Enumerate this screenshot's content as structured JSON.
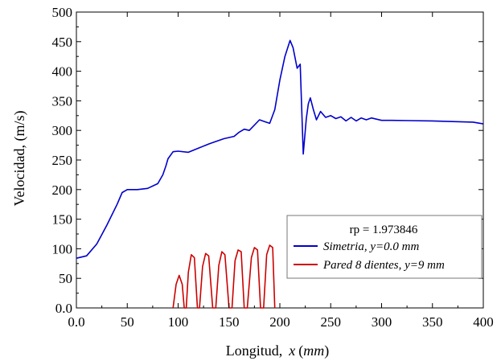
{
  "chart_data": {
    "type": "line",
    "xlabel": "Longitud,",
    "xlabel_var": "x",
    "xlabel_unit": "mm",
    "ylabel": "Velocidad, (m/s)",
    "xlim": [
      0,
      400
    ],
    "ylim": [
      0,
      500
    ],
    "x_ticks": [
      0,
      50,
      100,
      150,
      200,
      250,
      300,
      350,
      400
    ],
    "x_tick_labels": [
      "0.0",
      "50",
      "100",
      "150",
      "200",
      "250",
      "300",
      "350",
      "400"
    ],
    "y_ticks": [
      0,
      50,
      100,
      150,
      200,
      250,
      300,
      350,
      400,
      450,
      500
    ],
    "y_tick_labels": [
      "0.0",
      "50",
      "100",
      "150",
      "200",
      "250",
      "300",
      "350",
      "400",
      "450",
      "500"
    ],
    "grid": false,
    "legend_position": "lower-right",
    "legend_header": "rp = 1.973846",
    "series": [
      {
        "name": "Simetria, y=0.0 mm",
        "color": "#0000cc",
        "x": [
          0,
          10,
          20,
          30,
          40,
          45,
          50,
          60,
          70,
          80,
          85,
          88,
          90,
          95,
          100,
          110,
          120,
          130,
          135,
          145,
          155,
          160,
          165,
          170,
          180,
          185,
          190,
          195,
          200,
          205,
          210,
          213,
          217,
          220,
          223,
          226,
          228,
          230,
          233,
          236,
          240,
          245,
          250,
          255,
          260,
          265,
          270,
          275,
          280,
          285,
          290,
          300,
          310,
          350,
          390,
          400
        ],
        "y": [
          84,
          88,
          108,
          140,
          175,
          195,
          200,
          200,
          202,
          210,
          225,
          240,
          252,
          264,
          265,
          263,
          270,
          277,
          280,
          286,
          290,
          297,
          302,
          300,
          318,
          315,
          312,
          335,
          385,
          425,
          452,
          440,
          405,
          412,
          260,
          320,
          345,
          355,
          335,
          318,
          332,
          322,
          325,
          320,
          323,
          316,
          322,
          316,
          321,
          318,
          321,
          317,
          317,
          316,
          314,
          311
        ]
      },
      {
        "name": "Pared 8 dientes, y=9 mm",
        "color": "#cc0000",
        "x": [
          95,
          98,
          101,
          104,
          106,
          108,
          110,
          113,
          116,
          119,
          121,
          124,
          127,
          130,
          134,
          137,
          140,
          143,
          146,
          150,
          153,
          156,
          159,
          162,
          165,
          168,
          172,
          175,
          178,
          181,
          184,
          187,
          190,
          193,
          195
        ],
        "y": [
          0,
          40,
          55,
          40,
          0,
          0,
          60,
          90,
          85,
          0,
          0,
          70,
          92,
          88,
          0,
          0,
          72,
          95,
          90,
          0,
          0,
          80,
          98,
          95,
          0,
          0,
          85,
          102,
          98,
          0,
          0,
          90,
          106,
          102,
          0
        ]
      }
    ]
  }
}
